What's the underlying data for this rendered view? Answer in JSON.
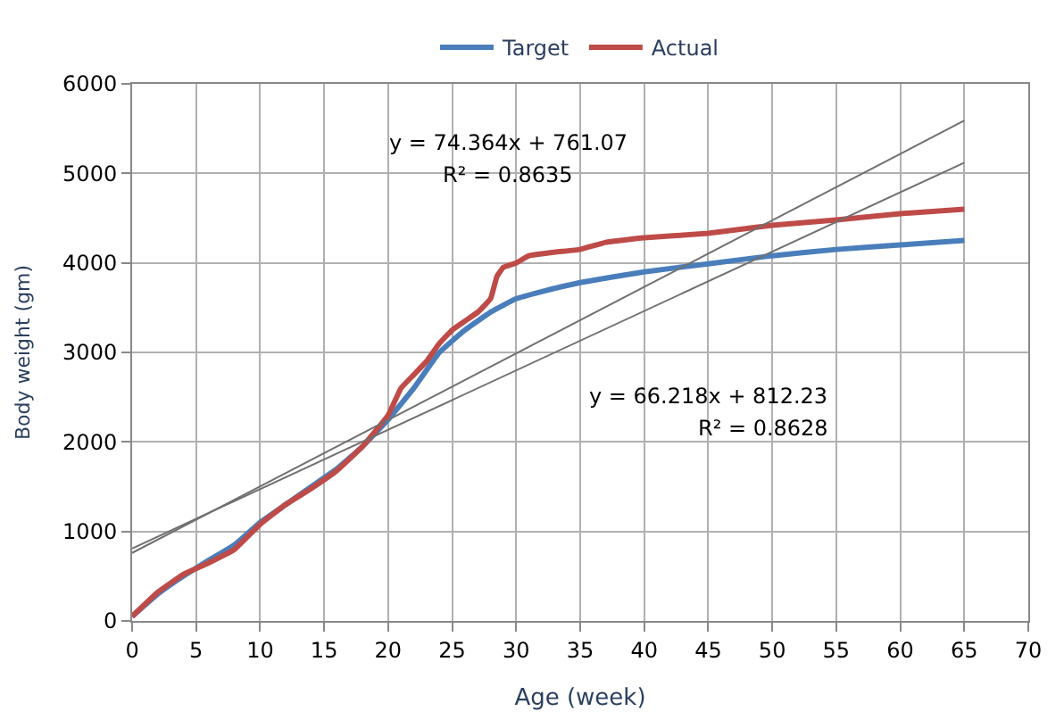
{
  "chart_data": {
    "type": "line",
    "xlabel": "Age (week)",
    "ylabel": "Body weight (gm)",
    "xlim": [
      0,
      70
    ],
    "xticks": [
      0,
      5,
      10,
      15,
      20,
      25,
      30,
      35,
      40,
      45,
      50,
      55,
      60,
      65,
      70
    ],
    "ylim": [
      0,
      6000
    ],
    "yticks": [
      0,
      1000,
      2000,
      3000,
      4000,
      5000,
      6000
    ],
    "grid": true,
    "legend": "top",
    "marker": "none",
    "line_style": "solid",
    "series": [
      {
        "name": "Target",
        "color": "#4a7ebb",
        "x": [
          0,
          2,
          4,
          6,
          8,
          10,
          12,
          14,
          16,
          18,
          20,
          22,
          24,
          26,
          28,
          30,
          32,
          35,
          40,
          45,
          50,
          55,
          60,
          65
        ],
        "values": [
          50,
          300,
          500,
          680,
          850,
          1100,
          1300,
          1500,
          1700,
          1950,
          2250,
          2600,
          3000,
          3250,
          3450,
          3600,
          3680,
          3780,
          3900,
          3990,
          4080,
          4150,
          4200,
          4250
        ]
      },
      {
        "name": "Actual",
        "color": "#be4b48",
        "x": [
          0,
          2,
          4,
          6,
          8,
          10,
          12,
          14,
          16,
          18,
          20,
          21,
          22,
          23,
          24,
          25,
          26,
          27,
          28,
          28.5,
          29,
          30,
          31,
          33,
          35,
          37,
          40,
          45,
          50,
          55,
          60,
          65
        ],
        "values": [
          50,
          320,
          520,
          650,
          800,
          1080,
          1300,
          1480,
          1680,
          1950,
          2300,
          2600,
          2750,
          2900,
          3100,
          3250,
          3350,
          3450,
          3600,
          3850,
          3950,
          4000,
          4080,
          4120,
          4150,
          4230,
          4280,
          4330,
          4420,
          4480,
          4550,
          4600
        ]
      },
      {
        "type": "line",
        "color": "#707070",
        "x": [
          0,
          65
        ],
        "values": [
          760,
          5590
        ]
      },
      {
        "type": "line",
        "color": "#707070",
        "x": [
          0,
          65
        ],
        "values": [
          810,
          5120
        ]
      }
    ],
    "annotations": [
      "y = 74.364x + 761.07",
      "R² = 0.8635",
      "y = 66.218x + 812.23",
      "R² = 0.8628"
    ]
  }
}
